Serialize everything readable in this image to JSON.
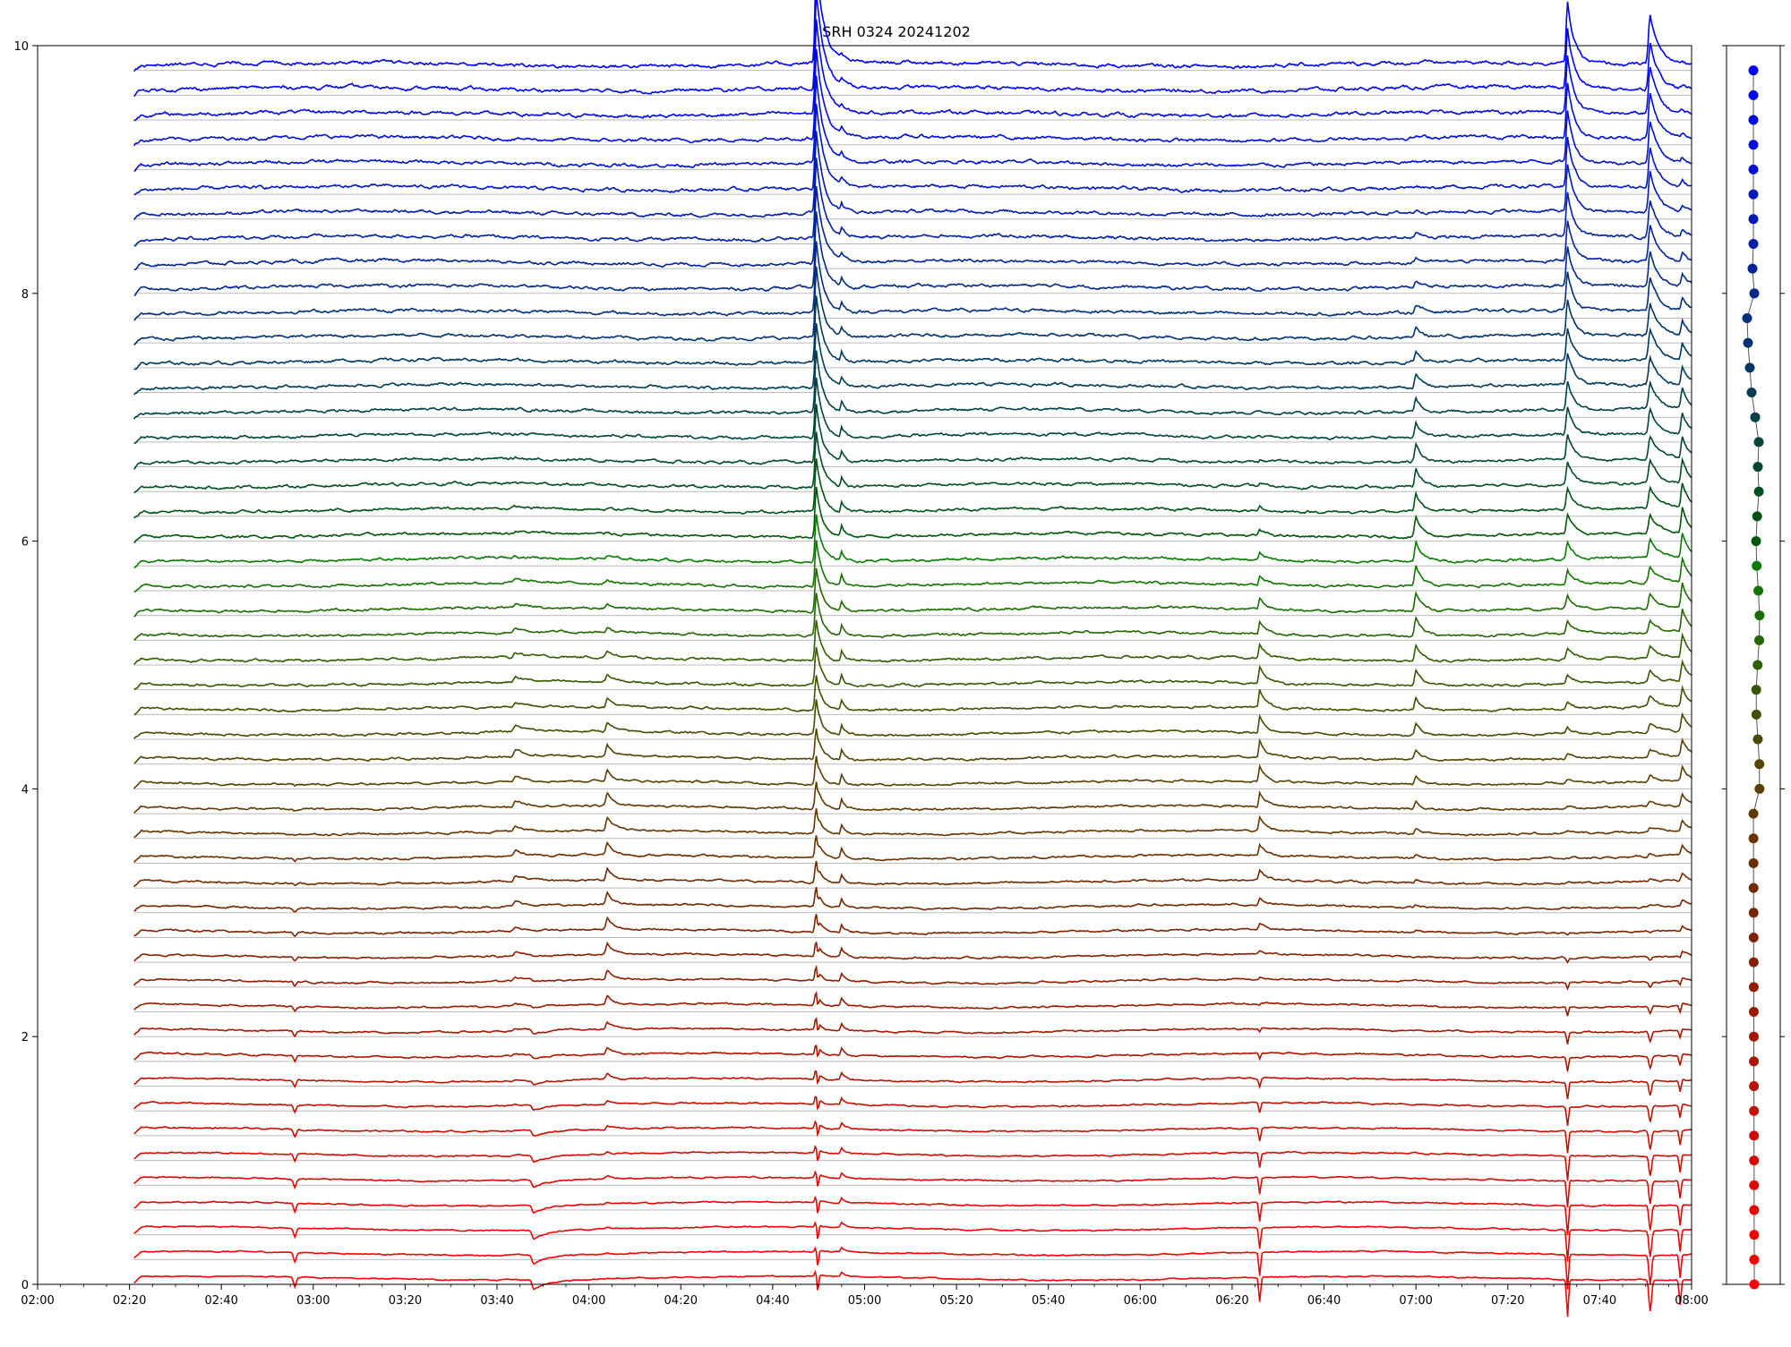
{
  "chart_data": {
    "type": "line",
    "title": "SRH 0324 20241202",
    "xlabel": "",
    "ylabel": "",
    "x_range": [
      "02:00",
      "08:00"
    ],
    "x_ticks": [
      "02:00",
      "02:20",
      "02:40",
      "03:00",
      "03:20",
      "03:40",
      "04:00",
      "04:20",
      "04:40",
      "05:00",
      "05:20",
      "05:40",
      "06:00",
      "06:20",
      "06:40",
      "07:00",
      "07:20",
      "07:40",
      "08:00"
    ],
    "ylim": [
      0,
      10
    ],
    "y_ticks": [
      "0",
      "2",
      "4",
      "6",
      "8",
      "10"
    ],
    "grid": false,
    "legend": "none",
    "series_count": 50,
    "series_baseline_spacing": 0.2,
    "series_start_time": "02:21",
    "series_end_time": "08:00",
    "color_bottom": "#ff0000",
    "color_middle": "#008000",
    "color_top": "#0000ff",
    "events": [
      {
        "time": "04:49",
        "peak_top": 0.8,
        "peak_bottom": 0.15,
        "note": "strong peak across all channels"
      },
      {
        "time": "04:55",
        "peak_top": 0.05,
        "peak_bottom": 0.06
      },
      {
        "time": "04:04",
        "peak_mid": 0.1
      },
      {
        "time": "06:26",
        "peak_mid": 0.14,
        "dip_bottom": 0.2
      },
      {
        "time": "07:00",
        "peak_mid": 0.16
      },
      {
        "time": "07:33",
        "peak_top": 0.5,
        "dip_bottom": 0.3
      },
      {
        "time": "07:51",
        "peak_top": 0.4,
        "dip_bottom": 0.25
      },
      {
        "time": "07:58",
        "peak_mid": 0.2,
        "dip_bottom": 0.25
      },
      {
        "time": "02:56",
        "dip_bottom": 0.08
      },
      {
        "time": "03:48",
        "dip_bottom": 0.08
      }
    ],
    "side_panel": {
      "type": "scatter",
      "description": "per-channel marker column",
      "points_count": 50,
      "x_offsets_top": [
        0.0,
        0.0,
        0.0,
        0.0,
        0.0,
        0.0,
        0.0,
        0.0,
        -0.05,
        0.05,
        -0.35,
        -0.3,
        -0.2,
        -0.1,
        0.1,
        0.3,
        0.25
      ]
    }
  }
}
